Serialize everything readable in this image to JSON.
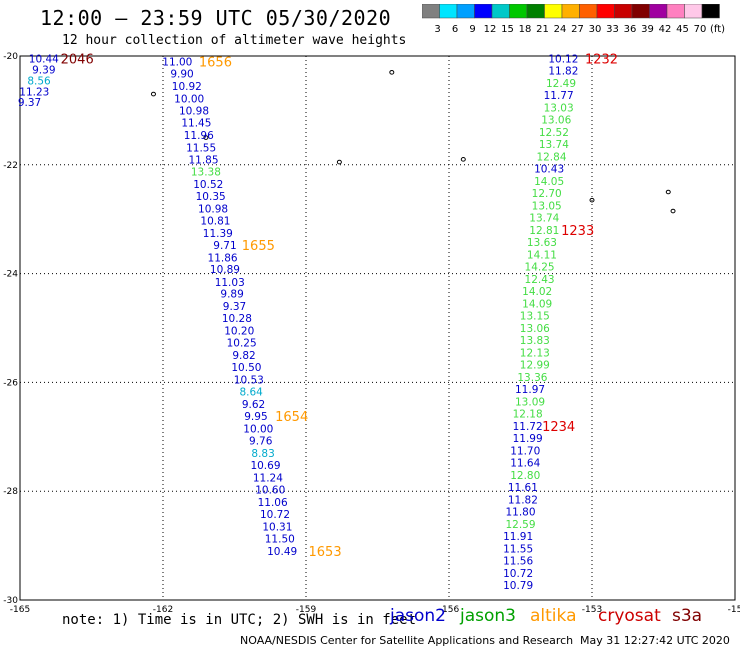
{
  "title": "12:00 — 23:59 UTC 05/30/2020",
  "subtitle": "12 hour collection of altimeter wave heights",
  "note": "note: 1) Time is in UTC; 2) SWH is in feet",
  "credit": "NOAA/NESDIS Center for Satellite Applications and Research",
  "timestamp": "May 31 12:27:42 UTC 2020",
  "colorbar": {
    "labels": [
      "3",
      "6",
      "9",
      "12",
      "15",
      "18",
      "21",
      "24",
      "27",
      "30",
      "33",
      "36",
      "39",
      "42",
      "45",
      "70",
      "(ft)"
    ],
    "colors": [
      "#808080",
      "#00e5ff",
      "#00a0ff",
      "#0000ff",
      "#00c8c8",
      "#00c800",
      "#008000",
      "#ffff00",
      "#ffb000",
      "#ff6000",
      "#ff0000",
      "#c80000",
      "#800000",
      "#a000a0",
      "#ff80c0",
      "#ffc8e8",
      "#000000"
    ]
  },
  "legend": [
    {
      "name": "jason2",
      "color": "#0000cc"
    },
    {
      "name": "jason3",
      "color": "#00a000"
    },
    {
      "name": "altika",
      "color": "#ff9900"
    },
    {
      "name": "cryosat",
      "color": "#cc0000"
    },
    {
      "name": "s3a",
      "color": "#800000"
    }
  ],
  "chart_data": {
    "type": "scatter",
    "xlim": [
      -165,
      -150
    ],
    "ylim": [
      -30,
      -20
    ],
    "xticks": [
      "-165",
      "-162",
      "-159",
      "-156",
      "-153",
      "-15"
    ],
    "yticks": [
      "-20",
      "-22",
      "-24",
      "-26",
      "-28",
      "-30"
    ],
    "grid": true,
    "colors": {
      "blue": "#0000cc",
      "cyan": "#00aacc",
      "green": "#44dd44",
      "orange": "#ff9900",
      "red": "#dd0000",
      "darkred": "#800000"
    },
    "points": [
      {
        "lon": -164.5,
        "lat": -20.05,
        "text": "10.44",
        "color": "blue"
      },
      {
        "lon": -164.5,
        "lat": -20.25,
        "text": "9.39",
        "color": "blue"
      },
      {
        "lon": -164.6,
        "lat": -20.45,
        "text": "8.56",
        "color": "cyan"
      },
      {
        "lon": -164.7,
        "lat": -20.65,
        "text": "11.23",
        "color": "blue"
      },
      {
        "lon": -164.8,
        "lat": -20.85,
        "text": "9.37",
        "color": "blue"
      },
      {
        "lon": -161.7,
        "lat": -20.1,
        "text": "11.00",
        "color": "blue"
      },
      {
        "lon": -161.6,
        "lat": -20.32,
        "text": "9.90",
        "color": "blue"
      },
      {
        "lon": -161.5,
        "lat": -20.55,
        "text": "10.92",
        "color": "blue"
      },
      {
        "lon": -161.45,
        "lat": -20.78,
        "text": "10.00",
        "color": "blue"
      },
      {
        "lon": -161.35,
        "lat": -21.0,
        "text": "10.98",
        "color": "blue"
      },
      {
        "lon": -161.3,
        "lat": -21.22,
        "text": "11.45",
        "color": "blue"
      },
      {
        "lon": -161.25,
        "lat": -21.45,
        "text": "11.96",
        "color": "blue"
      },
      {
        "lon": -161.2,
        "lat": -21.68,
        "text": "11.55",
        "color": "blue"
      },
      {
        "lon": -161.15,
        "lat": -21.9,
        "text": "11.85",
        "color": "blue"
      },
      {
        "lon": -161.1,
        "lat": -22.12,
        "text": "13.38",
        "color": "green"
      },
      {
        "lon": -161.05,
        "lat": -22.35,
        "text": "10.52",
        "color": "blue"
      },
      {
        "lon": -161.0,
        "lat": -22.57,
        "text": "10.35",
        "color": "blue"
      },
      {
        "lon": -160.95,
        "lat": -22.8,
        "text": "10.98",
        "color": "blue"
      },
      {
        "lon": -160.9,
        "lat": -23.02,
        "text": "10.81",
        "color": "blue"
      },
      {
        "lon": -160.85,
        "lat": -23.25,
        "text": "11.39",
        "color": "blue"
      },
      {
        "lon": -160.7,
        "lat": -23.47,
        "text": "9.71",
        "color": "blue"
      },
      {
        "lon": -160.75,
        "lat": -23.7,
        "text": "11.86",
        "color": "blue"
      },
      {
        "lon": -160.7,
        "lat": -23.92,
        "text": "10.89",
        "color": "blue"
      },
      {
        "lon": -160.6,
        "lat": -24.15,
        "text": "11.03",
        "color": "blue"
      },
      {
        "lon": -160.55,
        "lat": -24.37,
        "text": "9.89",
        "color": "blue"
      },
      {
        "lon": -160.5,
        "lat": -24.6,
        "text": "9.37",
        "color": "blue"
      },
      {
        "lon": -160.45,
        "lat": -24.82,
        "text": "10.28",
        "color": "blue"
      },
      {
        "lon": -160.4,
        "lat": -25.05,
        "text": "10.20",
        "color": "blue"
      },
      {
        "lon": -160.35,
        "lat": -25.27,
        "text": "10.25",
        "color": "blue"
      },
      {
        "lon": -160.3,
        "lat": -25.5,
        "text": "9.82",
        "color": "blue"
      },
      {
        "lon": -160.25,
        "lat": -25.72,
        "text": "10.50",
        "color": "blue"
      },
      {
        "lon": -160.2,
        "lat": -25.95,
        "text": "10.53",
        "color": "blue"
      },
      {
        "lon": -160.15,
        "lat": -26.17,
        "text": "8.64",
        "color": "cyan"
      },
      {
        "lon": -160.1,
        "lat": -26.4,
        "text": "9.62",
        "color": "blue"
      },
      {
        "lon": -160.05,
        "lat": -26.62,
        "text": "9.95",
        "color": "blue"
      },
      {
        "lon": -160.0,
        "lat": -26.85,
        "text": "10.00",
        "color": "blue"
      },
      {
        "lon": -159.95,
        "lat": -27.07,
        "text": "9.76",
        "color": "blue"
      },
      {
        "lon": -159.9,
        "lat": -27.3,
        "text": "8.83",
        "color": "cyan"
      },
      {
        "lon": -159.85,
        "lat": -27.52,
        "text": "10.69",
        "color": "blue"
      },
      {
        "lon": -159.8,
        "lat": -27.75,
        "text": "11.24",
        "color": "blue"
      },
      {
        "lon": -159.75,
        "lat": -27.97,
        "text": "10.60",
        "color": "blue"
      },
      {
        "lon": -159.7,
        "lat": -28.2,
        "text": "11.06",
        "color": "blue"
      },
      {
        "lon": -159.65,
        "lat": -28.42,
        "text": "10.72",
        "color": "blue"
      },
      {
        "lon": -159.6,
        "lat": -28.65,
        "text": "10.31",
        "color": "blue"
      },
      {
        "lon": -159.55,
        "lat": -28.87,
        "text": "11.50",
        "color": "blue"
      },
      {
        "lon": -159.5,
        "lat": -29.1,
        "text": "10.49",
        "color": "blue"
      },
      {
        "lon": -153.6,
        "lat": -20.05,
        "text": "10.12",
        "color": "blue"
      },
      {
        "lon": -153.6,
        "lat": -20.27,
        "text": "11.82",
        "color": "blue"
      },
      {
        "lon": -153.65,
        "lat": -20.5,
        "text": "12.49",
        "color": "green"
      },
      {
        "lon": -153.7,
        "lat": -20.72,
        "text": "11.77",
        "color": "blue"
      },
      {
        "lon": -153.7,
        "lat": -20.95,
        "text": "13.03",
        "color": "green"
      },
      {
        "lon": -153.75,
        "lat": -21.17,
        "text": "13.06",
        "color": "green"
      },
      {
        "lon": -153.8,
        "lat": -21.4,
        "text": "12.52",
        "color": "green"
      },
      {
        "lon": -153.8,
        "lat": -21.62,
        "text": "13.74",
        "color": "green"
      },
      {
        "lon": -153.85,
        "lat": -21.85,
        "text": "12.84",
        "color": "green"
      },
      {
        "lon": -153.9,
        "lat": -22.07,
        "text": "10.43",
        "color": "blue"
      },
      {
        "lon": -153.9,
        "lat": -22.3,
        "text": "14.05",
        "color": "green"
      },
      {
        "lon": -153.95,
        "lat": -22.52,
        "text": "12.70",
        "color": "green"
      },
      {
        "lon": -153.95,
        "lat": -22.75,
        "text": "13.05",
        "color": "green"
      },
      {
        "lon": -154.0,
        "lat": -22.97,
        "text": "13.74",
        "color": "green"
      },
      {
        "lon": -154.0,
        "lat": -23.2,
        "text": "12.81",
        "color": "green"
      },
      {
        "lon": -154.05,
        "lat": -23.42,
        "text": "13.63",
        "color": "green"
      },
      {
        "lon": -154.05,
        "lat": -23.65,
        "text": "14.11",
        "color": "green"
      },
      {
        "lon": -154.1,
        "lat": -23.87,
        "text": "14.25",
        "color": "green"
      },
      {
        "lon": -154.1,
        "lat": -24.1,
        "text": "12.43",
        "color": "green"
      },
      {
        "lon": -154.15,
        "lat": -24.32,
        "text": "14.02",
        "color": "green"
      },
      {
        "lon": -154.15,
        "lat": -24.55,
        "text": "14.09",
        "color": "green"
      },
      {
        "lon": -154.2,
        "lat": -24.77,
        "text": "13.15",
        "color": "green"
      },
      {
        "lon": -154.2,
        "lat": -25.0,
        "text": "13.06",
        "color": "green"
      },
      {
        "lon": -154.2,
        "lat": -25.22,
        "text": "13.83",
        "color": "green"
      },
      {
        "lon": -154.2,
        "lat": -25.45,
        "text": "12.13",
        "color": "green"
      },
      {
        "lon": -154.2,
        "lat": -25.67,
        "text": "12.99",
        "color": "green"
      },
      {
        "lon": -154.25,
        "lat": -25.9,
        "text": "13.36",
        "color": "green"
      },
      {
        "lon": -154.3,
        "lat": -26.12,
        "text": "11.97",
        "color": "blue"
      },
      {
        "lon": -154.3,
        "lat": -26.35,
        "text": "13.09",
        "color": "green"
      },
      {
        "lon": -154.35,
        "lat": -26.57,
        "text": "12.18",
        "color": "green"
      },
      {
        "lon": -154.35,
        "lat": -26.8,
        "text": "11.72",
        "color": "blue"
      },
      {
        "lon": -154.35,
        "lat": -27.02,
        "text": "11.99",
        "color": "blue"
      },
      {
        "lon": -154.4,
        "lat": -27.25,
        "text": "11.70",
        "color": "blue"
      },
      {
        "lon": -154.4,
        "lat": -27.47,
        "text": "11.64",
        "color": "blue"
      },
      {
        "lon": -154.4,
        "lat": -27.7,
        "text": "12.80",
        "color": "green"
      },
      {
        "lon": -154.45,
        "lat": -27.92,
        "text": "11.61",
        "color": "blue"
      },
      {
        "lon": -154.45,
        "lat": -28.15,
        "text": "11.82",
        "color": "blue"
      },
      {
        "lon": -154.5,
        "lat": -28.37,
        "text": "11.80",
        "color": "blue"
      },
      {
        "lon": -154.5,
        "lat": -28.6,
        "text": "12.59",
        "color": "green"
      },
      {
        "lon": -154.55,
        "lat": -28.82,
        "text": "11.91",
        "color": "blue"
      },
      {
        "lon": -154.55,
        "lat": -29.05,
        "text": "11.55",
        "color": "blue"
      },
      {
        "lon": -154.55,
        "lat": -29.27,
        "text": "11.56",
        "color": "blue"
      },
      {
        "lon": -154.55,
        "lat": -29.5,
        "text": "10.72",
        "color": "blue"
      },
      {
        "lon": -154.55,
        "lat": -29.72,
        "text": "10.79",
        "color": "blue"
      }
    ],
    "time_labels": [
      {
        "lon": -163.8,
        "lat": -20.05,
        "text": "2046",
        "color": "darkred"
      },
      {
        "lon": -160.9,
        "lat": -20.1,
        "text": "1656",
        "color": "orange"
      },
      {
        "lon": -160.0,
        "lat": -23.47,
        "text": "1655",
        "color": "orange"
      },
      {
        "lon": -159.3,
        "lat": -26.62,
        "text": "1654",
        "color": "orange"
      },
      {
        "lon": -158.6,
        "lat": -29.1,
        "text": "1653",
        "color": "orange"
      },
      {
        "lon": -152.8,
        "lat": -20.05,
        "text": "1232",
        "color": "red"
      },
      {
        "lon": -153.3,
        "lat": -23.2,
        "text": "1233",
        "color": "red"
      },
      {
        "lon": -153.7,
        "lat": -26.8,
        "text": "1234",
        "color": "red"
      }
    ],
    "islands": [
      {
        "lon": -162.2,
        "lat": -20.7
      },
      {
        "lon": -161.1,
        "lat": -21.5
      },
      {
        "lon": -157.2,
        "lat": -20.3
      },
      {
        "lon": -158.3,
        "lat": -21.95
      },
      {
        "lon": -155.7,
        "lat": -21.9
      },
      {
        "lon": -153.0,
        "lat": -22.65
      },
      {
        "lon": -151.4,
        "lat": -22.5
      },
      {
        "lon": -151.3,
        "lat": -22.85
      }
    ]
  }
}
